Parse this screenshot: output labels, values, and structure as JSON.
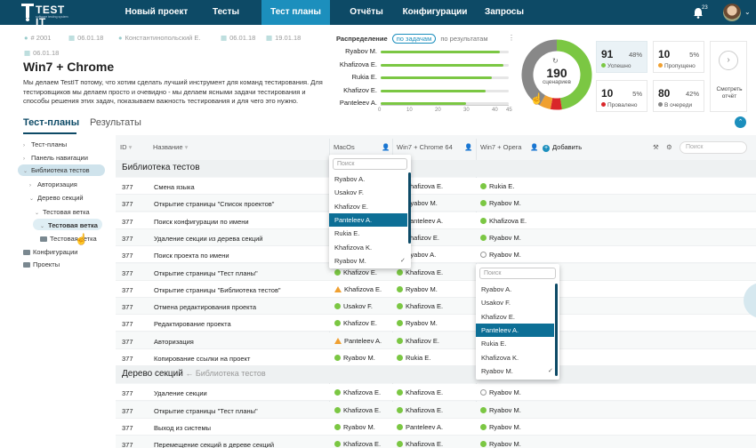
{
  "app": {
    "logo": "TEST IT",
    "logo_sub": "software testing system"
  },
  "nav": {
    "items": [
      "Новый проект",
      "Тесты",
      "Тест планы",
      "Отчёты",
      "Конфигурации",
      "Запросы"
    ],
    "active_index": 2,
    "notifications_count": "23"
  },
  "header": {
    "plan_id": "# 2001",
    "created": "06.01.18",
    "author": "Константинопольский Е.",
    "date_start": "06.01.18",
    "date_end": "19.01.18",
    "date_extra": "06.01.18",
    "title": "Win7 + Chrome",
    "description": "Мы делаем TestIT потому, что хотим сделать лучший инструмент для команд тестирования. Для тестировщиков мы делаем просто и очевидно - мы делаем ясными задачи тестирования и способы решения этих задач, показываем важность тестирования и для чего это нужно."
  },
  "tabs": {
    "plans": "Тест-планы",
    "results": "Результаты"
  },
  "distribution": {
    "label": "Распределение",
    "by_tasks": "по задачам",
    "by_results": "по результатам",
    "axis_ticks": [
      "0",
      "10",
      "20",
      "30",
      "40",
      "45"
    ],
    "xlim": [
      0,
      45
    ],
    "bars": [
      {
        "name": "Ryabov M.",
        "value": 42
      },
      {
        "name": "Khafizova E.",
        "value": 43
      },
      {
        "name": "Rukia E.",
        "value": 39
      },
      {
        "name": "Khafizov E.",
        "value": 37
      },
      {
        "name": "Panteleev A.",
        "value": 30
      }
    ]
  },
  "donut": {
    "total": "190",
    "label": "сценариев",
    "segments": [
      {
        "name": "Успешно",
        "value": 91,
        "color": "#7bc743"
      },
      {
        "name": "Провалено",
        "value": 10,
        "color": "#d9262a"
      },
      {
        "name": "Пропущено",
        "value": 10,
        "color": "#f0a030"
      },
      {
        "name": "В очереди",
        "value": 80,
        "color": "#888888"
      }
    ]
  },
  "stats": [
    {
      "num": "91",
      "pct": "48%",
      "label": "Успешно",
      "color": "#7bc743"
    },
    {
      "num": "10",
      "pct": "5%",
      "label": "Пропущено",
      "color": "#f0a030"
    },
    {
      "num": "10",
      "pct": "5%",
      "label": "Провалено",
      "color": "#d9262a"
    },
    {
      "num": "80",
      "pct": "42%",
      "label": "В очереди",
      "color": "#888888"
    }
  ],
  "report": {
    "label": "Смотреть отчёт"
  },
  "tree": [
    "Тест-планы",
    "Панель навигации",
    "Библиотека тестов",
    "Авторизация",
    "Дерево секций",
    "Тестовая ветка",
    "Тестовая ветка",
    "Тестовая ветка",
    "Конфигурации",
    "Проекты"
  ],
  "table": {
    "headers": {
      "id": "ID",
      "name": "Название",
      "c1": "MacOs",
      "c2": "Win7 + Chrome 64",
      "c3": "Win7 + Opera",
      "add": "Добавить",
      "search": "Поиск"
    },
    "sections": [
      {
        "title": "Библиотека тестов",
        "sub": "",
        "rows": [
          {
            "id": "377",
            "name": "Смена языка",
            "c1": "",
            "s1": "",
            "c2": "Khafizova E.",
            "s2": "pass",
            "c3": "Rukia E.",
            "s3": "pass"
          },
          {
            "id": "377",
            "name": "Открытие страницы \"Список проектов\"",
            "c1": "",
            "s1": "",
            "c2": "Ryabov M.",
            "s2": "pass",
            "c3": "Ryabov M.",
            "s3": "pass"
          },
          {
            "id": "377",
            "name": "Поиск конфигурации по имени",
            "c1": "",
            "s1": "",
            "c2": "Panteleev A.",
            "s2": "pass",
            "c3": "Khafizova E.",
            "s3": "pass"
          },
          {
            "id": "377",
            "name": "Удаление секции из дерева секций",
            "c1": "",
            "s1": "",
            "c2": "Khafizov E.",
            "s2": "pass",
            "c3": "Ryabov M.",
            "s3": "pass"
          },
          {
            "id": "377",
            "name": "Поиск проекта по имени",
            "c1": "",
            "s1": "",
            "c2": "Ryabov A.",
            "s2": "pass",
            "c3": "Ryabov M.",
            "s3": "pend"
          },
          {
            "id": "377",
            "name": "Открытие страницы \"Тест планы\"",
            "c1": "Khafizov E.",
            "s1": "pass",
            "c2": "Khafizova E.",
            "s2": "pass",
            "c3": "",
            "s3": ""
          },
          {
            "id": "377",
            "name": "Открытие страницы \"Библиотека тестов\"",
            "c1": "Khafizova E.",
            "s1": "warn",
            "c2": "Ryabov M.",
            "s2": "pass",
            "c3": "",
            "s3": ""
          },
          {
            "id": "377",
            "name": "Отмена редактирования проекта",
            "c1": "Usakov F.",
            "s1": "pass",
            "c2": "Khafizova E.",
            "s2": "pass",
            "c3": "",
            "s3": ""
          },
          {
            "id": "377",
            "name": "Редактирование проекта",
            "c1": "Khafizov E.",
            "s1": "pass",
            "c2": "Ryabov M.",
            "s2": "pass",
            "c3": "",
            "s3": ""
          },
          {
            "id": "377",
            "name": "Авторизация",
            "c1": "Panteleev A.",
            "s1": "warn",
            "c2": "Khafizov E.",
            "s2": "pass",
            "c3": "",
            "s3": ""
          },
          {
            "id": "377",
            "name": "Копирование ссылки на проект",
            "c1": "Ryabov M.",
            "s1": "pass",
            "c2": "Rukia E.",
            "s2": "pass",
            "c3": "",
            "s3": ""
          }
        ]
      },
      {
        "title": "Дерево секций",
        "sub": "Библиотека тестов",
        "rows": [
          {
            "id": "377",
            "name": "Удаление секции",
            "c1": "Khafizova E.",
            "s1": "pass",
            "c2": "Khafizova E.",
            "s2": "pass",
            "c3": "Ryabov M.",
            "s3": "pend"
          },
          {
            "id": "377",
            "name": "Открытие страницы \"Тест планы\"",
            "c1": "Khafizova E.",
            "s1": "pass",
            "c2": "Khafizova E.",
            "s2": "pass",
            "c3": "Ryabov M.",
            "s3": "pass"
          },
          {
            "id": "377",
            "name": "Выход из системы",
            "c1": "Ryabov M.",
            "s1": "pass",
            "c2": "Panteleev A.",
            "s2": "pass",
            "c3": "Ryabov M.",
            "s3": "pass"
          },
          {
            "id": "377",
            "name": "Перемещение секций в дереве секций",
            "c1": "Khafizova E.",
            "s1": "pass",
            "c2": "Khafizova E.",
            "s2": "pass",
            "c3": "Ryabov M.",
            "s3": "pass"
          }
        ]
      }
    ]
  },
  "dropdown1": {
    "search": "Поиск",
    "items": [
      "Ryabov A.",
      "Usakov F.",
      "Khafizov E.",
      "Panteleev A.",
      "Rukia E.",
      "Khafizova K.",
      "Ryabov M."
    ],
    "selected": 3
  },
  "dropdown2": {
    "search": "Поиск",
    "items": [
      "Ryabov A.",
      "Usakov F.",
      "Khafizov E.",
      "Panteleev A.",
      "Rukia E.",
      "Khafizova K.",
      "Ryabov M."
    ],
    "selected": 3
  }
}
